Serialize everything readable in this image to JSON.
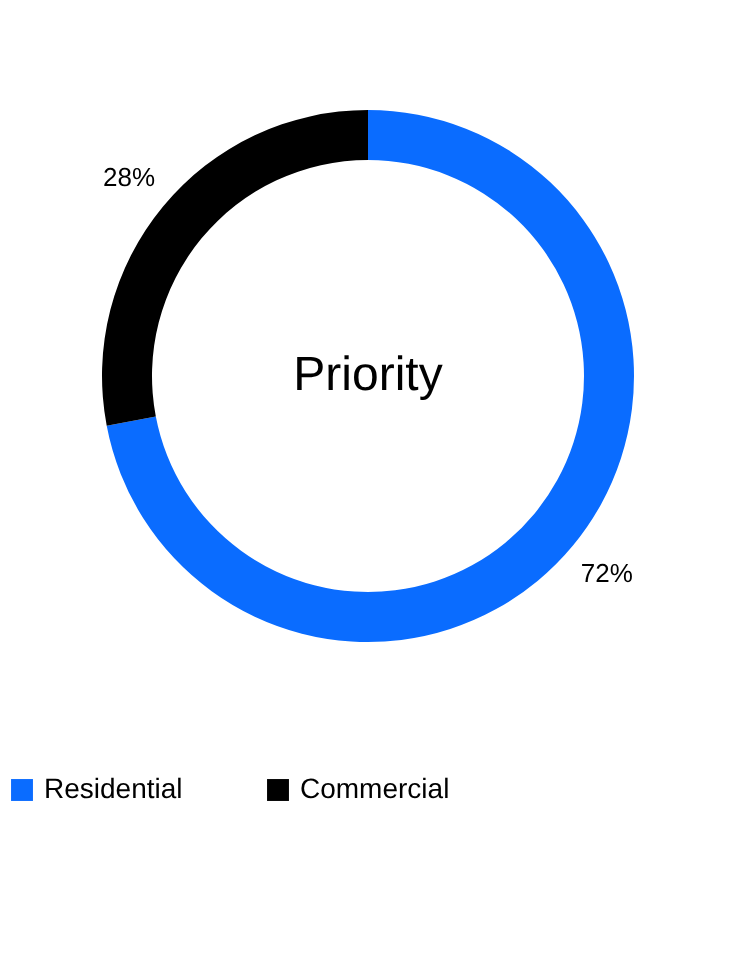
{
  "chart_data": {
    "type": "donut",
    "title": "Priority",
    "categories": [
      "Residential",
      "Commercial"
    ],
    "values": [
      72,
      28
    ],
    "colors": [
      "#0a6cff",
      "#000000"
    ],
    "value_labels": [
      "72%",
      "28%"
    ],
    "legend": "bottom"
  }
}
